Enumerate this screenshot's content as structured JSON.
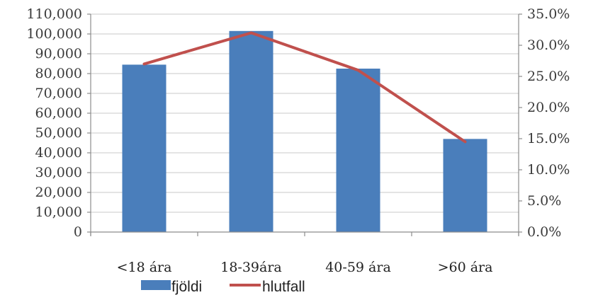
{
  "chart_data": {
    "type": "bar",
    "categories": [
      "<18 ára",
      "18-39ára",
      "40-59 ára",
      ">60 ára"
    ],
    "series": [
      {
        "name": "fjöldi",
        "type": "bar",
        "axis": "left",
        "values": [
          84500,
          101500,
          82500,
          47000
        ],
        "color": "#4a7ebb"
      },
      {
        "name": "hlutfall",
        "type": "line",
        "axis": "right",
        "values": [
          0.27,
          0.32,
          0.26,
          0.145
        ],
        "color": "#c0504d"
      }
    ],
    "y_left": {
      "range": [
        0,
        110000
      ],
      "ticks": [
        0,
        10000,
        20000,
        30000,
        40000,
        50000,
        60000,
        70000,
        80000,
        90000,
        100000,
        110000
      ],
      "tick_labels": [
        "0",
        "10,000",
        "20,000",
        "30,000",
        "40,000",
        "50,000",
        "60,000",
        "70,000",
        "80,000",
        "90,000",
        "100,000",
        "110,000"
      ]
    },
    "y_right": {
      "range": [
        0,
        0.35
      ],
      "ticks": [
        0,
        0.05,
        0.1,
        0.15,
        0.2,
        0.25,
        0.3,
        0.35
      ],
      "tick_labels": [
        "0.0%",
        "5.0%",
        "10.0%",
        "15.0%",
        "20.0%",
        "25.0%",
        "30.0%",
        "35.0%"
      ]
    },
    "grid": true,
    "legend_position": "bottom",
    "colors": {
      "gridline": "#c8c8c8",
      "axis": "#8c8c8c"
    }
  }
}
